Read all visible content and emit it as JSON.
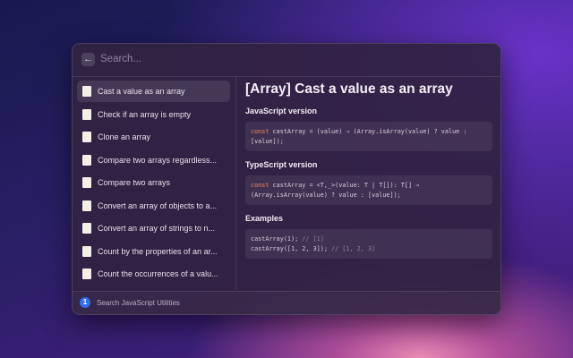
{
  "search": {
    "placeholder": "Search..."
  },
  "list": {
    "items": [
      "Cast a value as an array",
      "Check if an array is empty",
      "Clone an array",
      "Compare two arrays regardless...",
      "Compare two arrays",
      "Convert an array of objects to a...",
      "Convert an array of strings to n...",
      "Count by the properties of an ar...",
      "Count the occurrences of a valu..."
    ]
  },
  "detail": {
    "title": "[Array] Cast a value as an array",
    "sections": [
      {
        "heading": "JavaScript version",
        "code": [
          [
            "const",
            " castArray = (value) ⇒ (Array.isArray(value) ? value :"
          ],
          [
            "[value]);"
          ]
        ]
      },
      {
        "heading": "TypeScript version",
        "code": [
          [
            "const",
            " castArray = <T,_>(value: T | T[]): T[] ⇒"
          ],
          [
            "(Array.isArray(value) ? value : [value]);"
          ]
        ]
      },
      {
        "heading": "Examples",
        "code": [
          [
            "castArray(1); ",
            "// [1]"
          ],
          [
            "castArray([1, 2, 3]); ",
            "// [1, 2, 3]"
          ]
        ]
      }
    ]
  },
  "footer": {
    "label": "Search JavaScript Utilities"
  }
}
